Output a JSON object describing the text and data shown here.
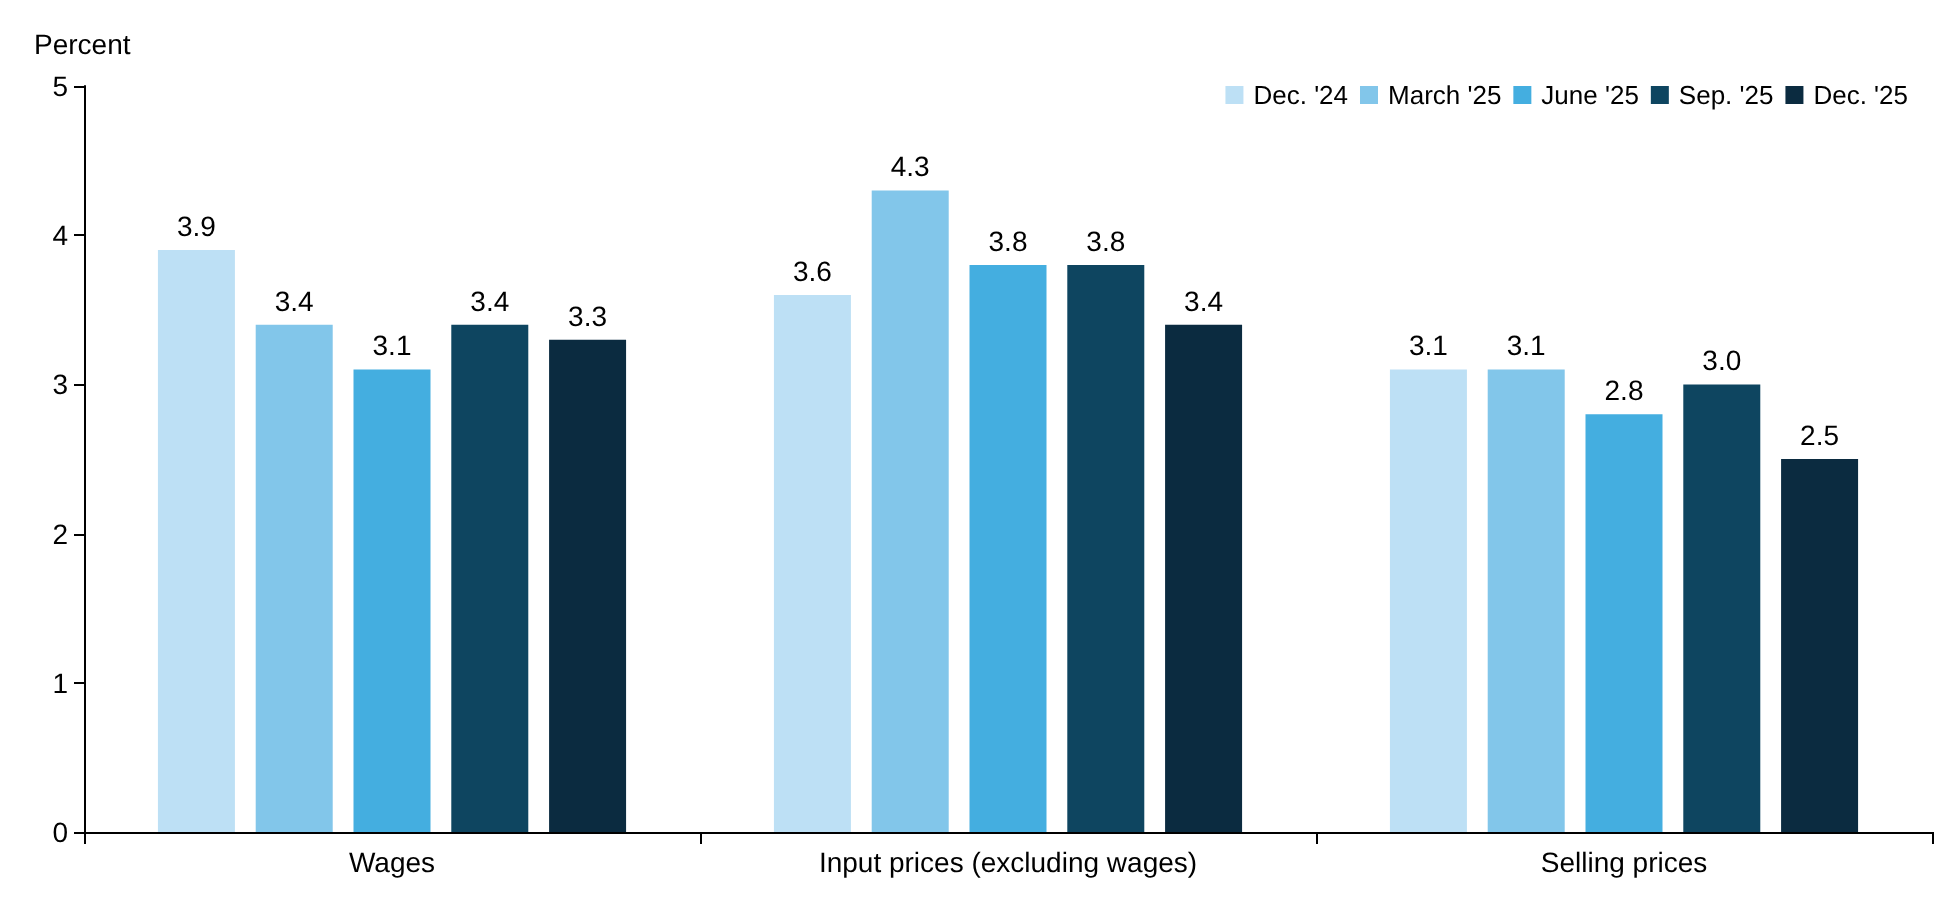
{
  "chart_data": {
    "type": "bar",
    "ylabel": "Percent",
    "categories": [
      "Wages",
      "Input prices (excluding wages)",
      "Selling prices"
    ],
    "series": [
      {
        "name": "Dec. '24",
        "color": "#bde0f5",
        "values": [
          3.9,
          3.6,
          3.1
        ],
        "value_labels": [
          "3.9",
          "3.6",
          "3.1"
        ]
      },
      {
        "name": "March '25",
        "color": "#82c6ea",
        "values": [
          3.4,
          4.3,
          3.1
        ],
        "value_labels": [
          "3.4",
          "4.3",
          "3.1"
        ]
      },
      {
        "name": "June '25",
        "color": "#44aee0",
        "values": [
          3.1,
          3.8,
          2.8
        ],
        "value_labels": [
          "3.1",
          "3.8",
          "2.8"
        ]
      },
      {
        "name": "Sep. '25",
        "color": "#0e4560",
        "values": [
          3.4,
          3.8,
          3.0
        ],
        "value_labels": [
          "3.4",
          "3.8",
          "3.0"
        ]
      },
      {
        "name": "Dec. '25",
        "color": "#0b2b40",
        "values": [
          3.3,
          3.4,
          2.5
        ],
        "value_labels": [
          "3.3",
          "3.4",
          "2.5"
        ]
      }
    ],
    "ylim": [
      0,
      5
    ],
    "yticks": [
      0,
      1,
      2,
      3,
      4,
      5
    ],
    "grid": false,
    "legend": "top right"
  }
}
